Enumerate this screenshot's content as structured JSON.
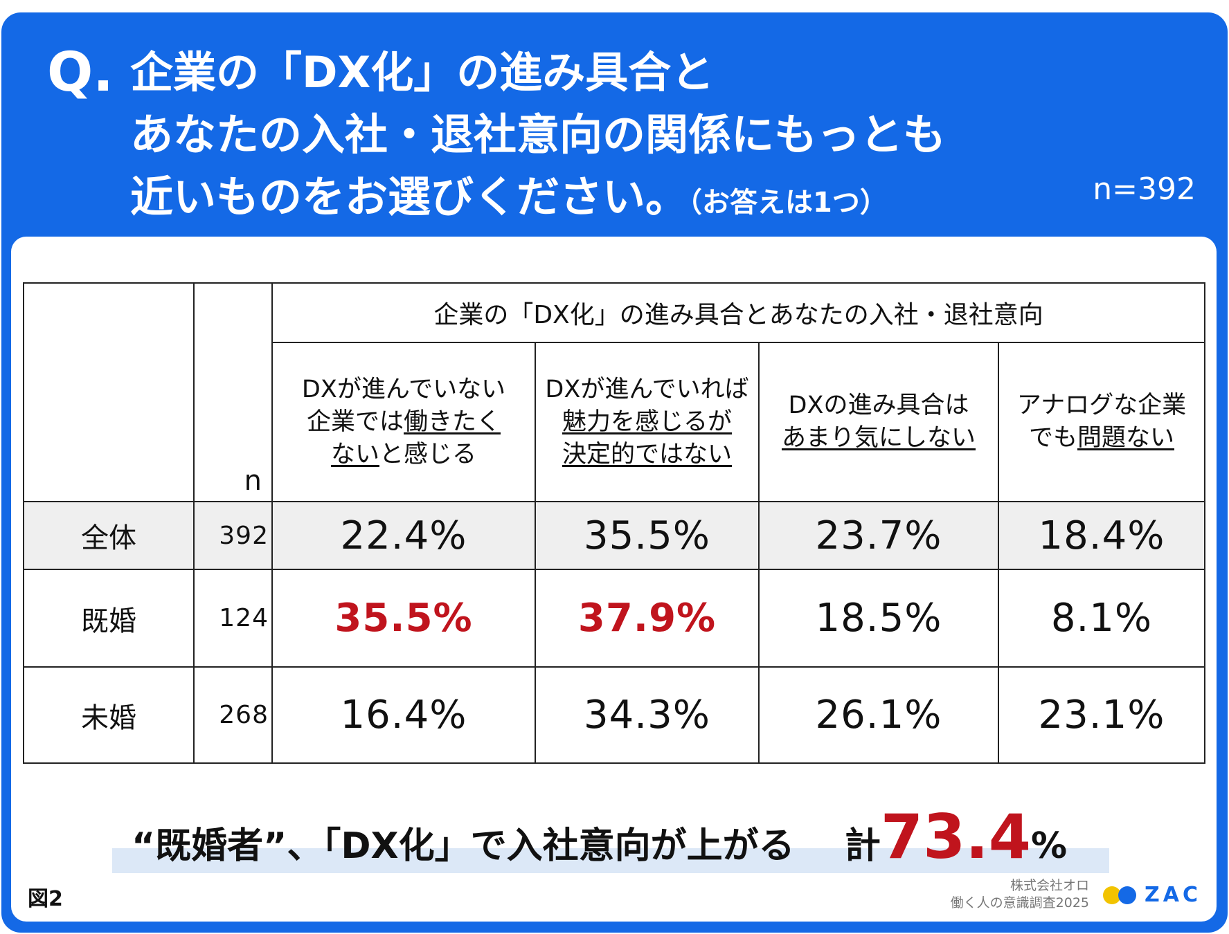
{
  "question": {
    "mark": "Q.",
    "line1": "企業の「DX化」の進み具合と",
    "line2": "あなたの入社・退社意向の関係にもっとも",
    "line3": "近いものをお選びください。",
    "note": "（お答えは1つ）",
    "n_total": "n=392"
  },
  "table": {
    "group_header": "企業の「DX化」の進み具合とあなたの入社・退社意向",
    "n_header": "n",
    "columns": [
      {
        "pre": "DXが進んでいない",
        "pre2": "企業では",
        "u": "働きたく",
        "mid": "",
        "u2": "ない",
        "post": "と感じる"
      },
      {
        "pre": "DXが進んでいれば",
        "u": "魅力を感じるが",
        "u2": "決定的ではない"
      },
      {
        "pre": "DXの進み具合は",
        "u": "あまり気にしない"
      },
      {
        "pre": "アナログな企業",
        "pre2": "でも",
        "u": "問題ない"
      }
    ],
    "rows": [
      {
        "label": "全体",
        "n": "392",
        "values": [
          "22.4%",
          "35.5%",
          "23.7%",
          "18.4%"
        ]
      },
      {
        "label": "既婚",
        "n": "124",
        "values": [
          "35.5%",
          "37.9%",
          "18.5%",
          "8.1%"
        ]
      },
      {
        "label": "未婚",
        "n": "268",
        "values": [
          "16.4%",
          "34.3%",
          "26.1%",
          "23.1%"
        ]
      }
    ]
  },
  "chart_data": {
    "type": "table",
    "title": "企業の「DX化」の進み具合とあなたの入社・退社意向",
    "columns": [
      "DXが進んでいない企業では働きたくないと感じる",
      "DXが進んでいれば魅力を感じるが決定的ではない",
      "DXの進み具合はあまり気にしない",
      "アナログな企業でも問題ない"
    ],
    "series": [
      {
        "name": "全体",
        "n": 392,
        "values": [
          22.4,
          35.5,
          23.7,
          18.4
        ]
      },
      {
        "name": "既婚",
        "n": 124,
        "values": [
          35.5,
          37.9,
          18.5,
          8.1
        ]
      },
      {
        "name": "未婚",
        "n": 268,
        "values": [
          16.4,
          34.3,
          26.1,
          23.1
        ]
      }
    ],
    "highlighted": [
      "既婚:35.5%",
      "既婚:37.9%"
    ]
  },
  "conclusion": {
    "text": "“既婚者”、「DX化」で入社意向が上がる",
    "total_label": "計",
    "total_value": "73.4",
    "total_unit": "%"
  },
  "footer": {
    "figure": "図2",
    "company": "株式会社オロ",
    "survey": "働く人の意識調査2025",
    "logo_text": "ZAC"
  },
  "colors": {
    "frame": "#1469e6",
    "highlight": "#c0141d",
    "gray_row": "#efefef",
    "conclusion_bar": "#dce8f7"
  }
}
